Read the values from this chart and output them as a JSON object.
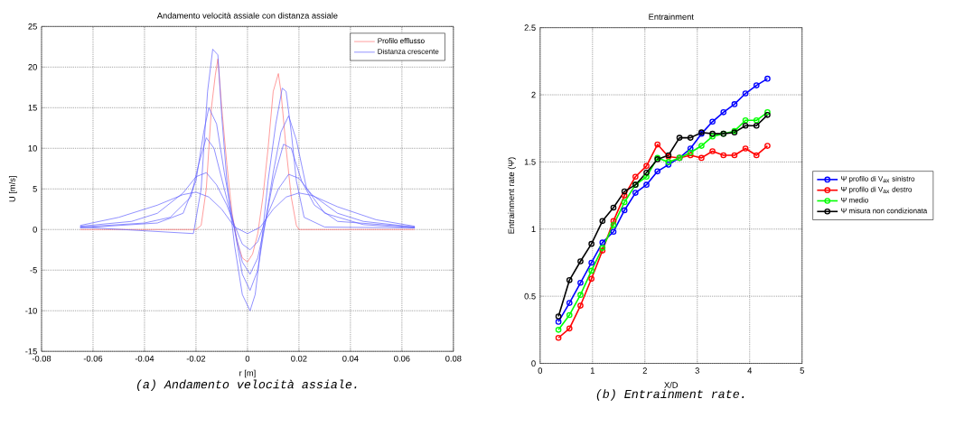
{
  "chart_data": [
    {
      "type": "line",
      "title": "Andamento velocità assiale con distanza assiale",
      "xlabel": "r [m]",
      "ylabel": "U [m/s]",
      "xlim": [
        -0.08,
        0.08
      ],
      "ylim": [
        -15,
        25
      ],
      "xticks": [
        -0.08,
        -0.06,
        -0.04,
        -0.02,
        0,
        0.02,
        0.04,
        0.06,
        0.08
      ],
      "yticks": [
        -15,
        -10,
        -5,
        0,
        5,
        10,
        15,
        20,
        25
      ],
      "grid": true,
      "legend": "top right",
      "marker": "none",
      "line_style": "solid",
      "annotations": [
        "(a) Andamento velocità assiale."
      ],
      "series": [
        {
          "name": "Profilo efflusso",
          "color": "#ff6b6b",
          "x": [
            -0.065,
            -0.02,
            -0.018,
            -0.016,
            -0.014,
            -0.0125,
            -0.0115,
            -0.01,
            -0.008,
            -0.006,
            -0.004,
            -0.002,
            0,
            0.002,
            0.004,
            0.006,
            0.008,
            0.01,
            0.012,
            0.013,
            0.015,
            0.017,
            0.019,
            0.02,
            0.065
          ],
          "values": [
            0,
            0,
            0.5,
            5,
            15,
            19,
            21,
            15,
            8,
            2,
            -1.5,
            -3.5,
            -4,
            -3,
            -0.5,
            4,
            10,
            17,
            19.2,
            17,
            10,
            4,
            0.5,
            0,
            0
          ]
        },
        {
          "name": "Distanza crescente",
          "color": "#5a5aff",
          "x": [
            -0.065,
            -0.021,
            -0.018,
            -0.0155,
            -0.0135,
            -0.0115,
            -0.01,
            -0.008,
            -0.005,
            -0.002,
            0.001,
            0.003,
            0.006,
            0.008,
            0.011,
            0.0135,
            0.015,
            0.017,
            0.019,
            0.022,
            0.03,
            0.065
          ],
          "values": [
            0.3,
            -0.5,
            5,
            17,
            22.2,
            21.5,
            14,
            6,
            -2,
            -8,
            -10,
            -8,
            0,
            6,
            13,
            17.4,
            17,
            12,
            6,
            1.5,
            0.3,
            0.2
          ]
        },
        {
          "color": "#5a5aff",
          "x": [
            -0.065,
            -0.035,
            -0.025,
            -0.02,
            -0.017,
            -0.015,
            -0.012,
            -0.009,
            -0.005,
            -0.002,
            0.001,
            0.004,
            0.007,
            0.01,
            0.013,
            0.016,
            0.019,
            0.023,
            0.03,
            0.045,
            0.065
          ],
          "values": [
            0.2,
            0.8,
            2,
            6,
            12,
            15,
            13,
            7,
            0,
            -5.5,
            -7.5,
            -5,
            1,
            7,
            12,
            14,
            11,
            5,
            2,
            0.6,
            0.2
          ]
        },
        {
          "color": "#5a5aff",
          "x": [
            -0.065,
            -0.04,
            -0.03,
            -0.022,
            -0.019,
            -0.016,
            -0.013,
            -0.009,
            -0.005,
            -0.002,
            0.001,
            0.004,
            0.007,
            0.01,
            0.014,
            0.017,
            0.021,
            0.026,
            0.035,
            0.065
          ],
          "values": [
            0.3,
            0.8,
            1.5,
            4,
            8,
            11.3,
            10,
            5,
            0,
            -4,
            -5.5,
            -3.5,
            1,
            6,
            10.5,
            10,
            6,
            3,
            1,
            0.3
          ]
        },
        {
          "color": "#5a5aff",
          "x": [
            -0.065,
            -0.045,
            -0.035,
            -0.025,
            -0.02,
            -0.016,
            -0.012,
            -0.008,
            -0.005,
            -0.002,
            0.001,
            0.004,
            0.008,
            0.012,
            0.016,
            0.02,
            0.025,
            0.035,
            0.045,
            0.065
          ],
          "values": [
            0.4,
            1,
            2,
            4.5,
            6.5,
            7,
            5.5,
            3,
            0.5,
            -1.8,
            -2.5,
            -1.5,
            2,
            5,
            6.8,
            6.3,
            4.3,
            2,
            1,
            0.3
          ]
        },
        {
          "color": "#5a5aff",
          "x": [
            -0.065,
            -0.05,
            -0.035,
            -0.025,
            -0.02,
            -0.015,
            -0.01,
            -0.005,
            0,
            0.005,
            0.01,
            0.015,
            0.02,
            0.025,
            0.035,
            0.05,
            0.065
          ],
          "values": [
            0.5,
            1.5,
            3,
            4.3,
            4.6,
            4,
            2.5,
            0.3,
            -0.5,
            0.3,
            2.5,
            4,
            4.5,
            4.2,
            2.8,
            1.2,
            0.4
          ]
        }
      ]
    },
    {
      "type": "line",
      "title": "Entrainment",
      "xlabel": "X/D",
      "ylabel": "Entrainment rate (Ψ)",
      "xlim": [
        0,
        5
      ],
      "ylim": [
        0,
        2.5
      ],
      "xticks": [
        0,
        1,
        2,
        3,
        4,
        5
      ],
      "yticks": [
        0,
        0.5,
        1,
        1.5,
        2,
        2.5
      ],
      "grid": true,
      "legend": "right",
      "marker": "circle",
      "line_style": "solid",
      "annotations": [
        "(b) Entrainment rate."
      ],
      "x": [
        0.35,
        0.56,
        0.77,
        0.98,
        1.19,
        1.4,
        1.61,
        1.82,
        2.03,
        2.24,
        2.45,
        2.66,
        2.87,
        3.08,
        3.29,
        3.5,
        3.71,
        3.92,
        4.13,
        4.34
      ],
      "series": [
        {
          "name": "Ψ profilo di V$_{ax}$ sinistro",
          "color": "#0000ff",
          "values": [
            0.31,
            0.45,
            0.6,
            0.75,
            0.9,
            0.98,
            1.14,
            1.27,
            1.33,
            1.43,
            1.48,
            1.53,
            1.6,
            1.71,
            1.8,
            1.87,
            1.93,
            2.01,
            2.07,
            2.12
          ]
        },
        {
          "name": "Ψ profilo di V$_{ax}$ destro",
          "color": "#ff0000",
          "values": [
            0.19,
            0.26,
            0.43,
            0.63,
            0.84,
            1.06,
            1.25,
            1.39,
            1.47,
            1.63,
            1.54,
            1.53,
            1.55,
            1.53,
            1.58,
            1.55,
            1.55,
            1.6,
            1.55,
            1.62
          ]
        },
        {
          "name": "Ψ medio",
          "color": "#00ff00",
          "values": [
            0.25,
            0.36,
            0.51,
            0.69,
            0.86,
            1.03,
            1.2,
            1.33,
            1.39,
            1.53,
            1.5,
            1.53,
            1.57,
            1.62,
            1.69,
            1.71,
            1.73,
            1.81,
            1.81,
            1.87
          ]
        },
        {
          "name": "Ψ misura non condizionata",
          "color": "#000000",
          "values": [
            0.35,
            0.62,
            0.76,
            0.89,
            1.06,
            1.16,
            1.28,
            1.33,
            1.42,
            1.52,
            1.55,
            1.68,
            1.68,
            1.72,
            1.71,
            1.71,
            1.72,
            1.77,
            1.77,
            1.85
          ]
        }
      ]
    }
  ]
}
